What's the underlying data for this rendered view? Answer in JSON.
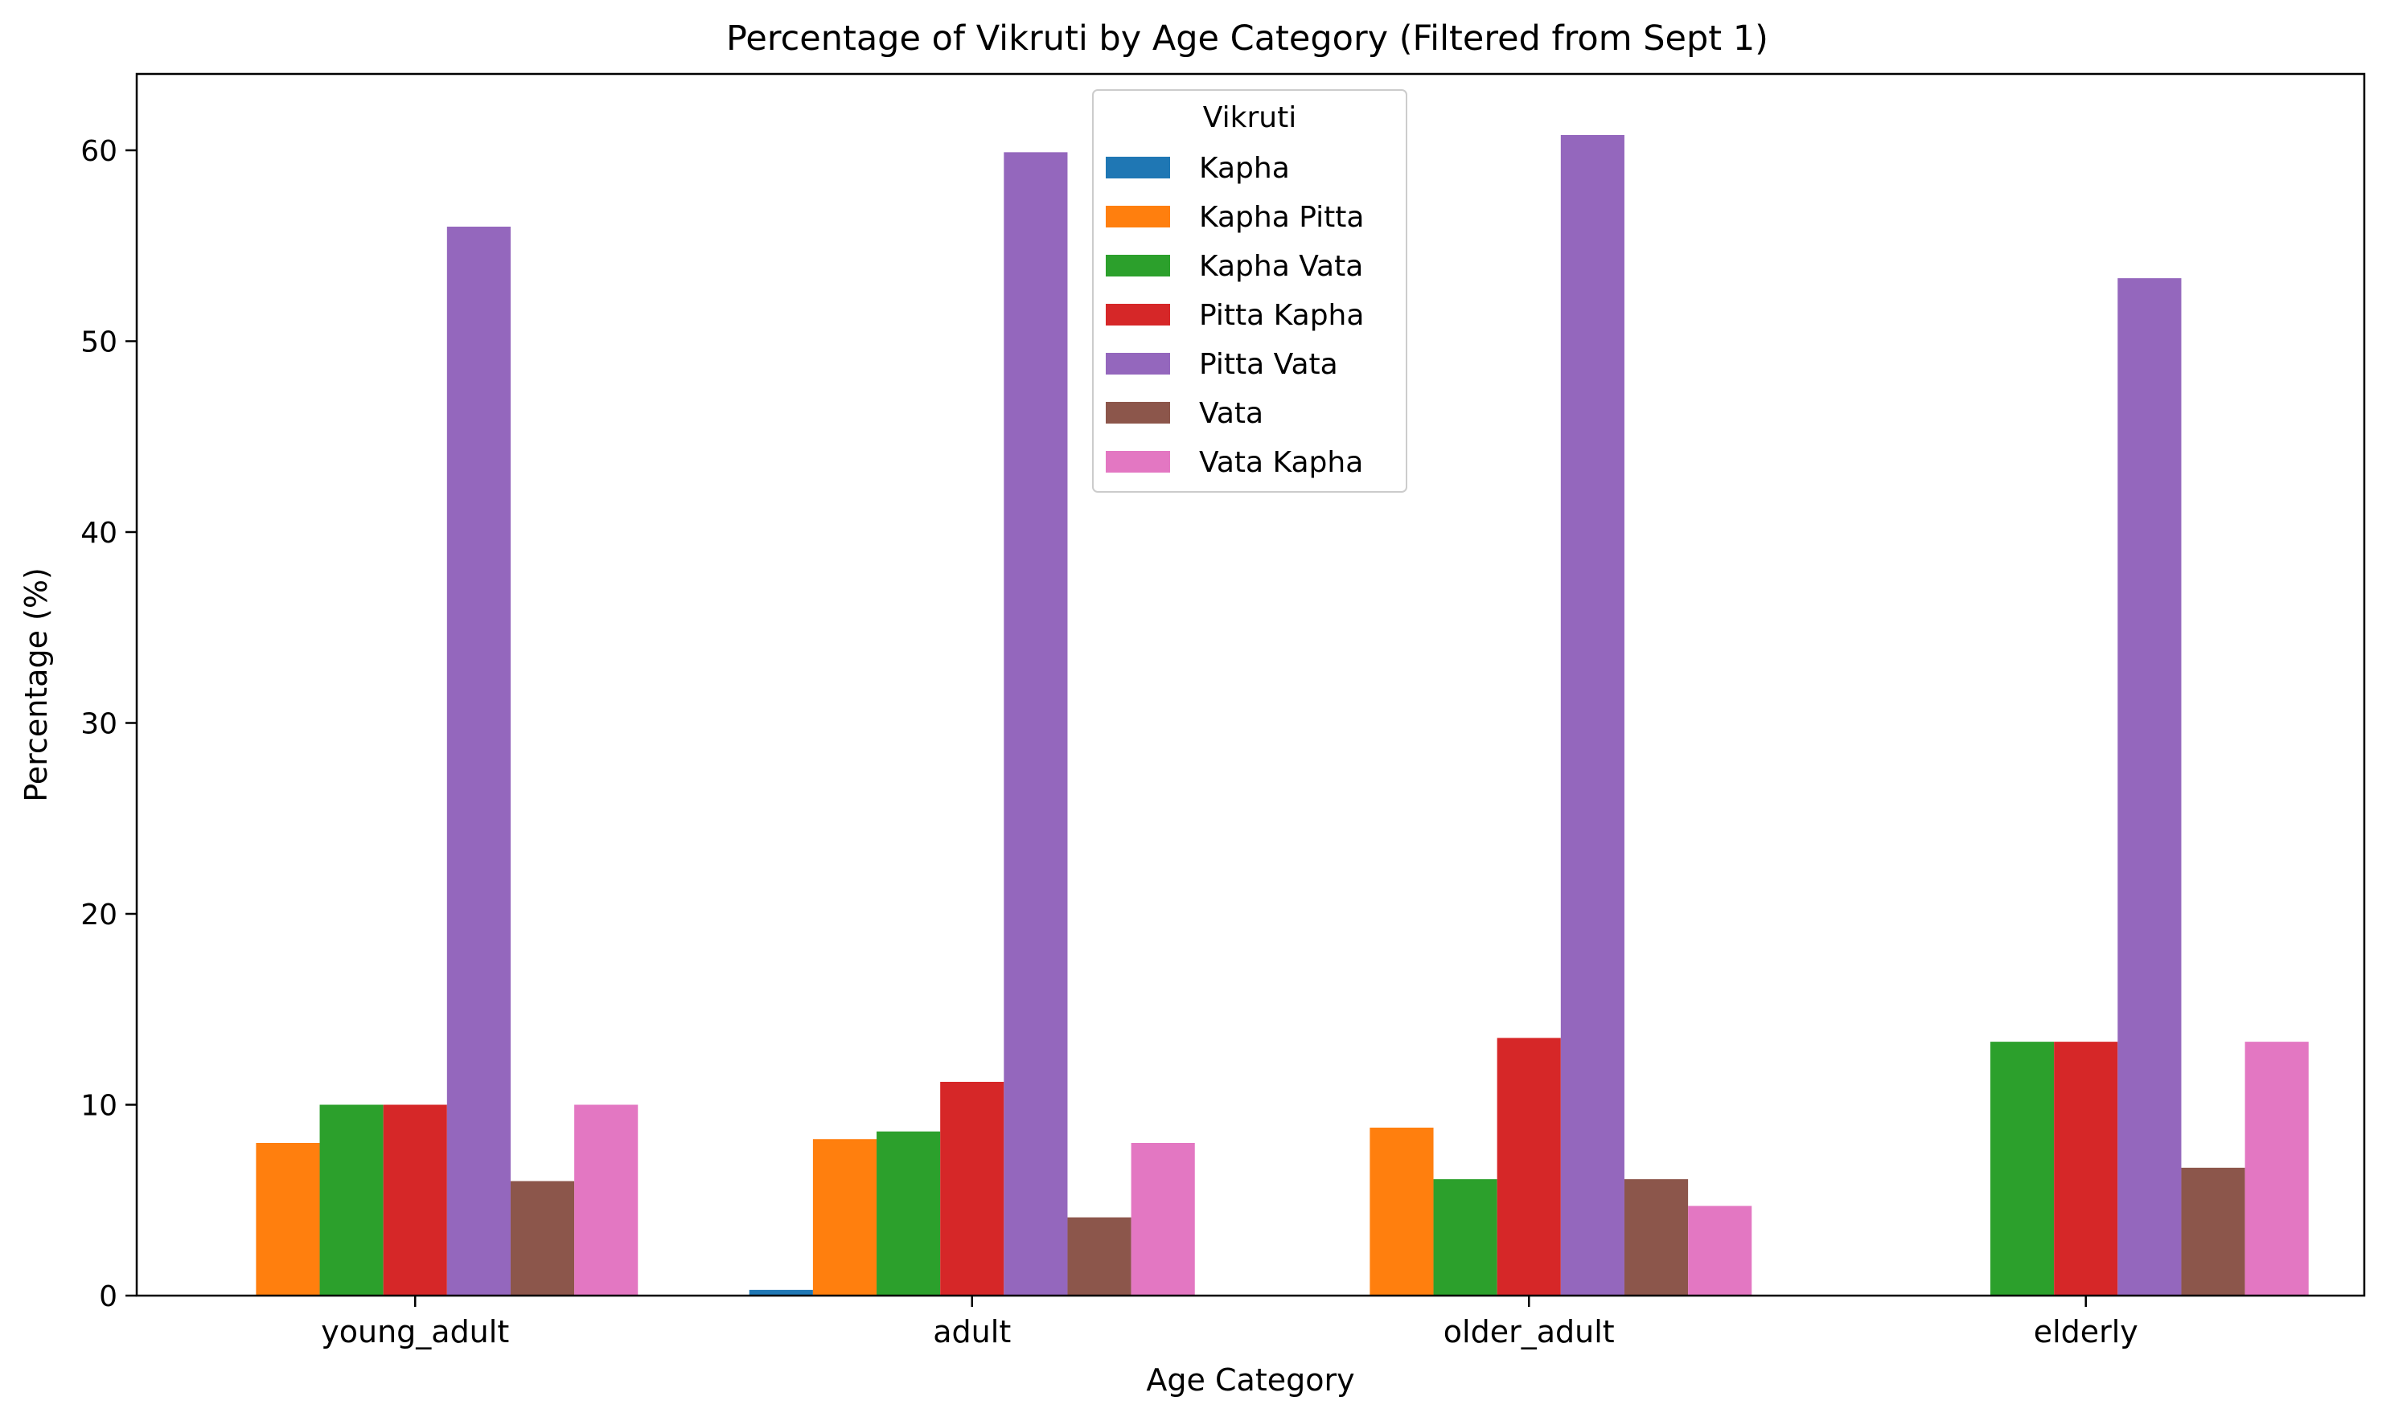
{
  "chart_data": {
    "type": "bar",
    "title": "Percentage of Vikruti by Age Category (Filtered from Sept 1)",
    "xlabel": "Age Category",
    "ylabel": "Percentage (%)",
    "ylim": [
      0,
      64
    ],
    "yticks": [
      0,
      10,
      20,
      30,
      40,
      50,
      60
    ],
    "grid": false,
    "categories": [
      "young_adult",
      "adult",
      "older_adult",
      "elderly"
    ],
    "legend": {
      "title": "Vikruti",
      "placement": "upper-center"
    },
    "series": [
      {
        "name": "Kapha",
        "color": "#1f77b4",
        "values": [
          0,
          0.3,
          0,
          0
        ]
      },
      {
        "name": "Kapha Pitta",
        "color": "#ff7f0e",
        "values": [
          8.0,
          8.2,
          8.8,
          0
        ]
      },
      {
        "name": "Kapha Vata",
        "color": "#2ca02c",
        "values": [
          10.0,
          8.6,
          6.1,
          13.3
        ]
      },
      {
        "name": "Pitta Kapha",
        "color": "#d62728",
        "values": [
          10.0,
          11.2,
          13.5,
          13.3
        ]
      },
      {
        "name": "Pitta Vata",
        "color": "#9467bd",
        "values": [
          56.0,
          59.9,
          60.8,
          53.3
        ]
      },
      {
        "name": "Vata",
        "color": "#8c564b",
        "values": [
          6.0,
          4.1,
          6.1,
          6.7
        ]
      },
      {
        "name": "Vata Kapha",
        "color": "#e377c2",
        "values": [
          10.0,
          8.0,
          4.7,
          13.3
        ]
      }
    ]
  }
}
